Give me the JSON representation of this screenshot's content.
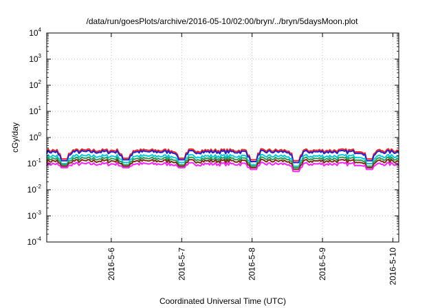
{
  "chart_data": {
    "type": "line",
    "title": "/data/run/goesPlots/archive/2016-05-10/02:00/bryn/../bryn/5daysMoon.plot",
    "xlabel": "Coordinated Universal Time (UTC)",
    "ylabel": "cGy/day",
    "yscale": "log",
    "ylim": [
      0.0001,
      10000
    ],
    "y_ticks": [
      {
        "base": "10",
        "exp": "-4",
        "value": 0.0001
      },
      {
        "base": "10",
        "exp": "-3",
        "value": 0.001
      },
      {
        "base": "10",
        "exp": "-2",
        "value": 0.01
      },
      {
        "base": "10",
        "exp": "-1",
        "value": 0.1
      },
      {
        "base": "10",
        "exp": "0",
        "value": 1
      },
      {
        "base": "10",
        "exp": "1",
        "value": 10
      },
      {
        "base": "10",
        "exp": "2",
        "value": 100
      },
      {
        "base": "10",
        "exp": "3",
        "value": 1000
      },
      {
        "base": "10",
        "exp": "4",
        "value": 10000
      }
    ],
    "xlim": [
      "2016-05-05T02:00",
      "2016-05-10T02:00"
    ],
    "x_ticks": [
      {
        "label": "2016-5-6",
        "value": "2016-05-06T00:00"
      },
      {
        "label": "2016-5-7",
        "value": "2016-05-07T00:00"
      },
      {
        "label": "2016-5-8",
        "value": "2016-05-08T00:00"
      },
      {
        "label": "2016-5-9",
        "value": "2016-05-09T00:00"
      },
      {
        "label": "2016-5-10",
        "value": "2016-05-10T00:00"
      }
    ],
    "grid": true,
    "series": [
      {
        "color": "#ff2020",
        "level": 0.33,
        "dips": [
          {
            "t": "2016-05-05T08:00",
            "v": 0.15
          },
          {
            "t": "2016-05-06T05:00",
            "v": 0.16
          },
          {
            "t": "2016-05-07T00:00",
            "v": 0.16
          },
          {
            "t": "2016-05-08T00:30",
            "v": 0.14
          },
          {
            "t": "2016-05-08T15:00",
            "v": 0.13
          },
          {
            "t": "2016-05-09T16:00",
            "v": 0.15
          }
        ]
      },
      {
        "color": "#2222cc",
        "level": 0.29,
        "dips": [
          {
            "t": "2016-05-05T08:00",
            "v": 0.13
          },
          {
            "t": "2016-05-06T05:00",
            "v": 0.14
          },
          {
            "t": "2016-05-07T00:00",
            "v": 0.14
          },
          {
            "t": "2016-05-08T00:30",
            "v": 0.12
          },
          {
            "t": "2016-05-08T15:00",
            "v": 0.11
          },
          {
            "t": "2016-05-09T16:00",
            "v": 0.13
          }
        ]
      },
      {
        "color": "#00c8d8",
        "level": 0.2,
        "dips": [
          {
            "t": "2016-05-05T08:00",
            "v": 0.1
          },
          {
            "t": "2016-05-06T05:00",
            "v": 0.11
          },
          {
            "t": "2016-05-07T00:00",
            "v": 0.11
          },
          {
            "t": "2016-05-08T00:30",
            "v": 0.09
          },
          {
            "t": "2016-05-08T15:00",
            "v": 0.08
          },
          {
            "t": "2016-05-09T16:00",
            "v": 0.1
          }
        ]
      },
      {
        "color": "#2a9a55",
        "level": 0.16,
        "dips": [
          {
            "t": "2016-05-05T08:00",
            "v": 0.09
          },
          {
            "t": "2016-05-06T05:00",
            "v": 0.09
          },
          {
            "t": "2016-05-07T00:00",
            "v": 0.09
          },
          {
            "t": "2016-05-08T00:30",
            "v": 0.08
          },
          {
            "t": "2016-05-08T15:00",
            "v": 0.07
          },
          {
            "t": "2016-05-09T16:00",
            "v": 0.08
          }
        ]
      },
      {
        "color": "#7a2a10",
        "level": 0.13,
        "dips": [
          {
            "t": "2016-05-05T08:00",
            "v": 0.08
          },
          {
            "t": "2016-05-06T05:00",
            "v": 0.08
          },
          {
            "t": "2016-05-07T00:00",
            "v": 0.08
          },
          {
            "t": "2016-05-08T00:30",
            "v": 0.07
          },
          {
            "t": "2016-05-08T15:00",
            "v": 0.06
          },
          {
            "t": "2016-05-09T16:00",
            "v": 0.07
          }
        ]
      },
      {
        "color": "#ff20ff",
        "level": 0.1,
        "dips": [
          {
            "t": "2016-05-05T08:00",
            "v": 0.07
          },
          {
            "t": "2016-05-06T05:00",
            "v": 0.07
          },
          {
            "t": "2016-05-07T00:00",
            "v": 0.07
          },
          {
            "t": "2016-05-08T00:30",
            "v": 0.06
          },
          {
            "t": "2016-05-08T15:00",
            "v": 0.05
          },
          {
            "t": "2016-05-09T16:00",
            "v": 0.06
          }
        ]
      }
    ]
  }
}
